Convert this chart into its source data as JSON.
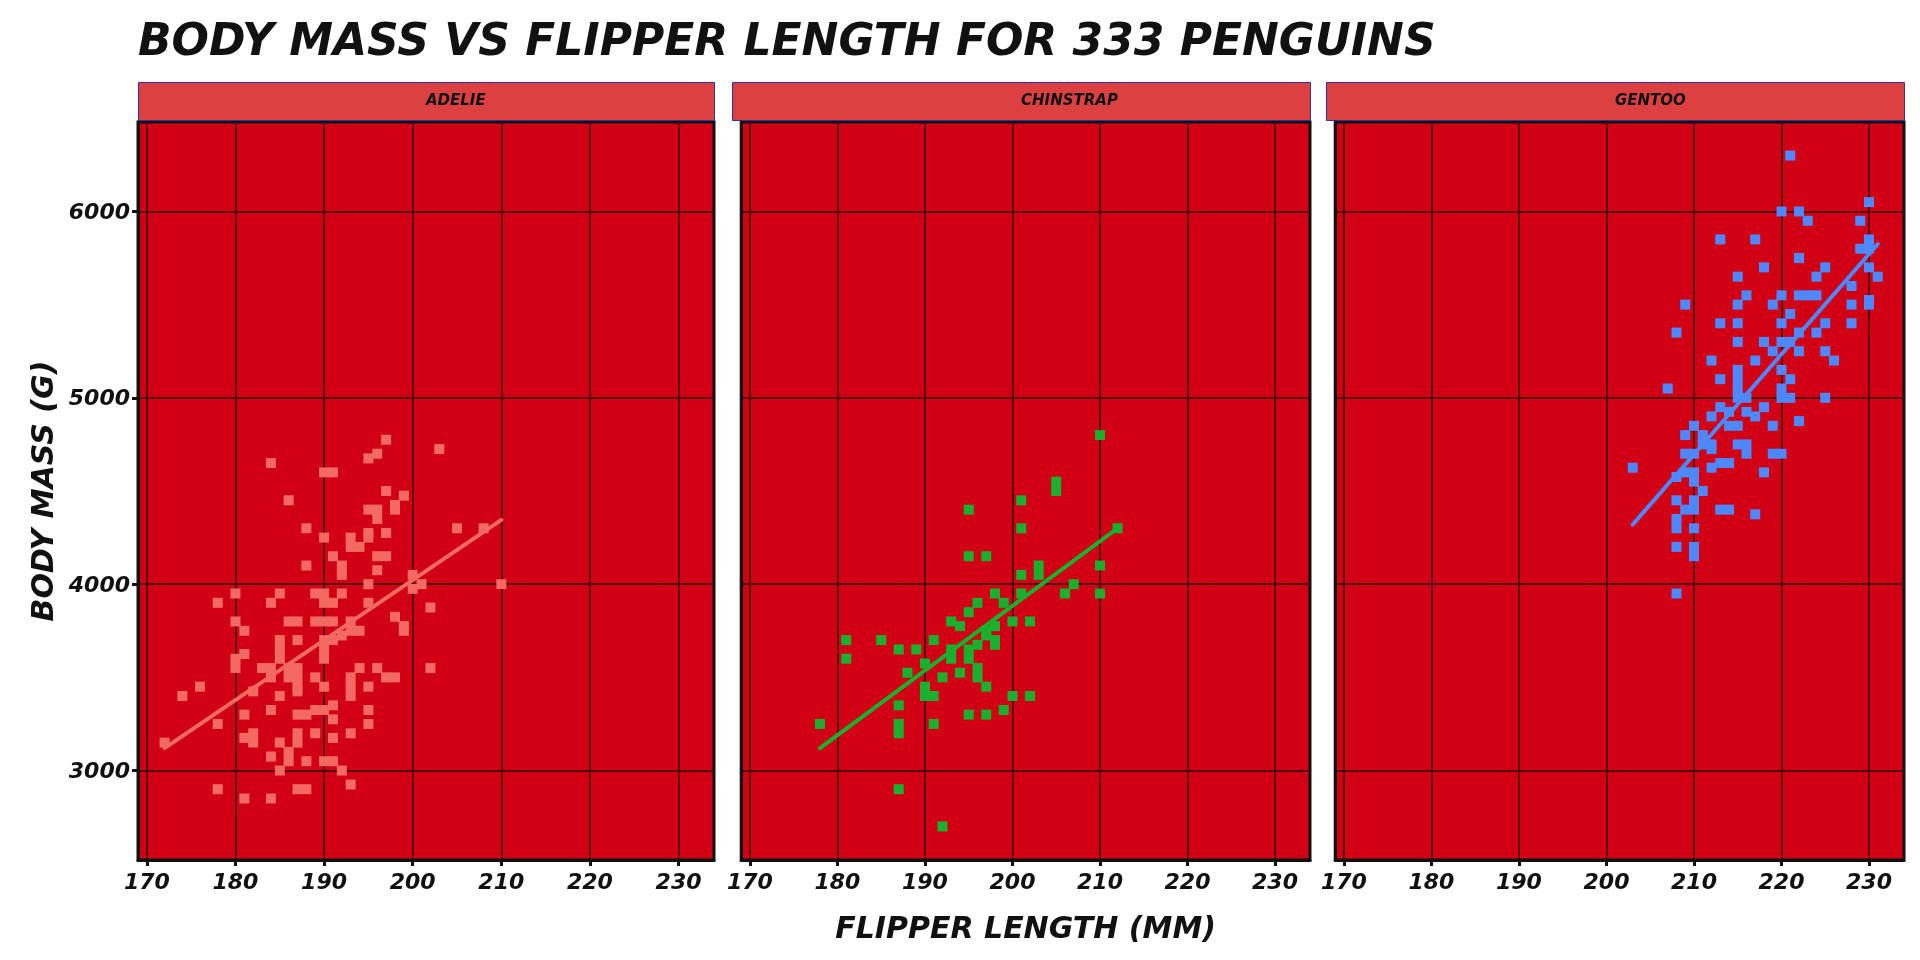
{
  "chart_data": [
    {
      "type": "scatter",
      "title": "BODY MASS VS FLIPPER LENGTH FOR 333 PENGUINS",
      "subtitle": "ADELIE",
      "ylabel": "BODY MASS (G)",
      "xlim": [
        169,
        234
      ],
      "xticks": [
        170,
        180,
        190,
        200,
        210,
        220,
        230
      ],
      "ylim": [
        2520,
        6480
      ],
      "yticks": [
        3000,
        4000,
        5000,
        6000
      ],
      "grid": true,
      "series": [
        {
          "marker": "square",
          "color": "#f26a62",
          "x": [
            197,
            203,
            184,
            195,
            196,
            190,
            191,
            197,
            199,
            198,
            198,
            186,
            195,
            196,
            196,
            188,
            205,
            208,
            197,
            195,
            195,
            190,
            193,
            193,
            194,
            191,
            196,
            197,
            188,
            192,
            192,
            196,
            200,
            200,
            201,
            195,
            210,
            180,
            185,
            178,
            184,
            189,
            190,
            192,
            190,
            191,
            195,
            202,
            180,
            186,
            187,
            189,
            190,
            191,
            193,
            198,
            199,
            199,
            181,
            192,
            193,
            194,
            190,
            191,
            185,
            185,
            187,
            190,
            190,
            180,
            181,
            180,
            185,
            183,
            184,
            186,
            187,
            184,
            186,
            187,
            189,
            190,
            194,
            196,
            202,
            193,
            193,
            193,
            195,
            197,
            198,
            187,
            187,
            176,
            174,
            182,
            185,
            181,
            184,
            187,
            188,
            189,
            190,
            191,
            191,
            195,
            195,
            178,
            172,
            181,
            182,
            182,
            185,
            187,
            187,
            189,
            191,
            193,
            184,
            186,
            186,
            188,
            190,
            191,
            185,
            192,
            193,
            178,
            181,
            184,
            187,
            188
          ],
          "values": [
            4775,
            4725,
            4650,
            4675,
            4700,
            4600,
            4600,
            4500,
            4475,
            4425,
            4400,
            4450,
            4400,
            4400,
            4350,
            4300,
            4300,
            4300,
            4275,
            4275,
            4250,
            4250,
            4250,
            4200,
            4200,
            4150,
            4150,
            4150,
            4100,
            4100,
            4050,
            4075,
            4050,
            3975,
            4000,
            4000,
            4000,
            3950,
            3950,
            3900,
            3900,
            3950,
            3950,
            3950,
            3900,
            3900,
            3900,
            3875,
            3800,
            3800,
            3800,
            3800,
            3800,
            3800,
            3800,
            3825,
            3775,
            3750,
            3750,
            3725,
            3750,
            3750,
            3700,
            3700,
            3700,
            3650,
            3700,
            3650,
            3600,
            3600,
            3625,
            3550,
            3600,
            3550,
            3550,
            3550,
            3550,
            3500,
            3500,
            3500,
            3500,
            3450,
            3550,
            3550,
            3550,
            3500,
            3450,
            3400,
            3450,
            3500,
            3500,
            3450,
            3425,
            3450,
            3400,
            3425,
            3400,
            3300,
            3325,
            3300,
            3300,
            3325,
            3325,
            3350,
            3275,
            3325,
            3250,
            3250,
            3150,
            3175,
            3200,
            3150,
            3150,
            3200,
            3150,
            3200,
            3175,
            3200,
            3075,
            3100,
            3050,
            3050,
            3050,
            3050,
            3000,
            3000,
            2925,
            2900,
            2850,
            2850,
            2900,
            2900
          ]
        },
        {
          "type": "line",
          "marker": "none",
          "color": "#f26a62",
          "x": [
            172,
            210
          ],
          "values": [
            3120,
            4345
          ]
        }
      ]
    },
    {
      "type": "scatter",
      "subtitle": "CHINSTRAP",
      "xlabel": "FLIPPER LENGTH (MM)",
      "xlim": [
        169,
        234
      ],
      "xticks": [
        170,
        180,
        190,
        200,
        210,
        220,
        230
      ],
      "ylim": [
        2520,
        6480
      ],
      "yticks": [
        3000,
        4000,
        5000,
        6000
      ],
      "grid": true,
      "tick_labels": "x",
      "series": [
        {
          "marker": "square",
          "color": "#18b02d",
          "x": [
            210,
            205,
            205,
            201,
            195,
            201,
            212,
            195,
            197,
            203,
            203,
            201,
            210,
            210,
            206,
            207,
            198,
            201,
            196,
            199,
            195,
            193,
            194,
            200,
            202,
            197,
            198,
            197,
            198,
            198,
            181,
            181,
            185,
            191,
            187,
            189,
            193,
            193,
            195,
            195,
            196,
            190,
            188,
            194,
            196,
            196,
            192,
            190,
            190,
            191,
            197,
            200,
            202,
            187,
            199,
            195,
            197,
            178,
            187,
            187,
            191,
            187,
            192
          ],
          "values": [
            4800,
            4550,
            4500,
            4450,
            4400,
            4300,
            4300,
            4150,
            4150,
            4100,
            4050,
            4050,
            4100,
            3950,
            3950,
            4000,
            3950,
            3950,
            3900,
            3900,
            3850,
            3800,
            3775,
            3800,
            3800,
            3750,
            3775,
            3725,
            3700,
            3675,
            3700,
            3600,
            3700,
            3700,
            3650,
            3650,
            3650,
            3600,
            3650,
            3600,
            3675,
            3575,
            3525,
            3525,
            3550,
            3500,
            3500,
            3450,
            3400,
            3400,
            3450,
            3400,
            3400,
            3350,
            3325,
            3300,
            3300,
            3250,
            3250,
            3200,
            3250,
            2900,
            2700
          ]
        },
        {
          "type": "line",
          "marker": "none",
          "color": "#18b02d",
          "x": [
            178,
            212
          ],
          "values": [
            3120,
            4300
          ]
        }
      ]
    },
    {
      "type": "scatter",
      "subtitle": "GENTOO",
      "xlim": [
        169,
        234
      ],
      "xticks": [
        170,
        180,
        190,
        200,
        210,
        220,
        230
      ],
      "ylim": [
        2520,
        6480
      ],
      "yticks": [
        3000,
        4000,
        5000,
        6000
      ],
      "grid": true,
      "tick_labels": "x",
      "series": [
        {
          "marker": "square",
          "color": "#4d88ff",
          "x": [
            221,
            230,
            220,
            222,
            223,
            229,
            213,
            217,
            230,
            229,
            230,
            222,
            218,
            225,
            224,
            230,
            231,
            215,
            228,
            216,
            220,
            222,
            223,
            224,
            209,
            215,
            219,
            228,
            230,
            230,
            221,
            213,
            215,
            220,
            225,
            228,
            208,
            222,
            224,
            215,
            218,
            220,
            221,
            219,
            222,
            225,
            212,
            217,
            226,
            215,
            215,
            215,
            220,
            213,
            221,
            220,
            220,
            221,
            225,
            207,
            215,
            216,
            213,
            214,
            216,
            217,
            218,
            212,
            222,
            210,
            214,
            215,
            219,
            209,
            211,
            211,
            212,
            212,
            215,
            216,
            216,
            209,
            210,
            219,
            220,
            203,
            212,
            213,
            214,
            208,
            209,
            210,
            210,
            218,
            211,
            208,
            210,
            209,
            210,
            213,
            214,
            217,
            208,
            208,
            210,
            208,
            210,
            210,
            208
          ],
          "values": [
            6300,
            6050,
            6000,
            6000,
            5950,
            5950,
            5850,
            5850,
            5850,
            5800,
            5800,
            5750,
            5700,
            5700,
            5650,
            5700,
            5650,
            5650,
            5600,
            5550,
            5550,
            5550,
            5550,
            5550,
            5500,
            5500,
            5500,
            5500,
            5525,
            5500,
            5450,
            5400,
            5400,
            5400,
            5400,
            5400,
            5350,
            5350,
            5350,
            5300,
            5300,
            5300,
            5300,
            5250,
            5250,
            5250,
            5200,
            5200,
            5200,
            5150,
            5100,
            5050,
            5150,
            5100,
            5100,
            5050,
            5000,
            5000,
            5000,
            5050,
            5000,
            5000,
            4950,
            4925,
            4925,
            4900,
            4950,
            4900,
            4875,
            4850,
            4850,
            4850,
            4850,
            4800,
            4800,
            4750,
            4750,
            4725,
            4750,
            4750,
            4700,
            4700,
            4700,
            4700,
            4700,
            4625,
            4625,
            4650,
            4650,
            4575,
            4600,
            4600,
            4550,
            4600,
            4500,
            4450,
            4450,
            4400,
            4400,
            4400,
            4400,
            4375,
            4350,
            4300,
            4300,
            4200,
            4200,
            4150,
            3950
          ]
        },
        {
          "type": "line",
          "marker": "none",
          "color": "#4d88ff",
          "x": [
            203,
            231
          ],
          "values": [
            4320,
            5825
          ]
        }
      ]
    }
  ]
}
